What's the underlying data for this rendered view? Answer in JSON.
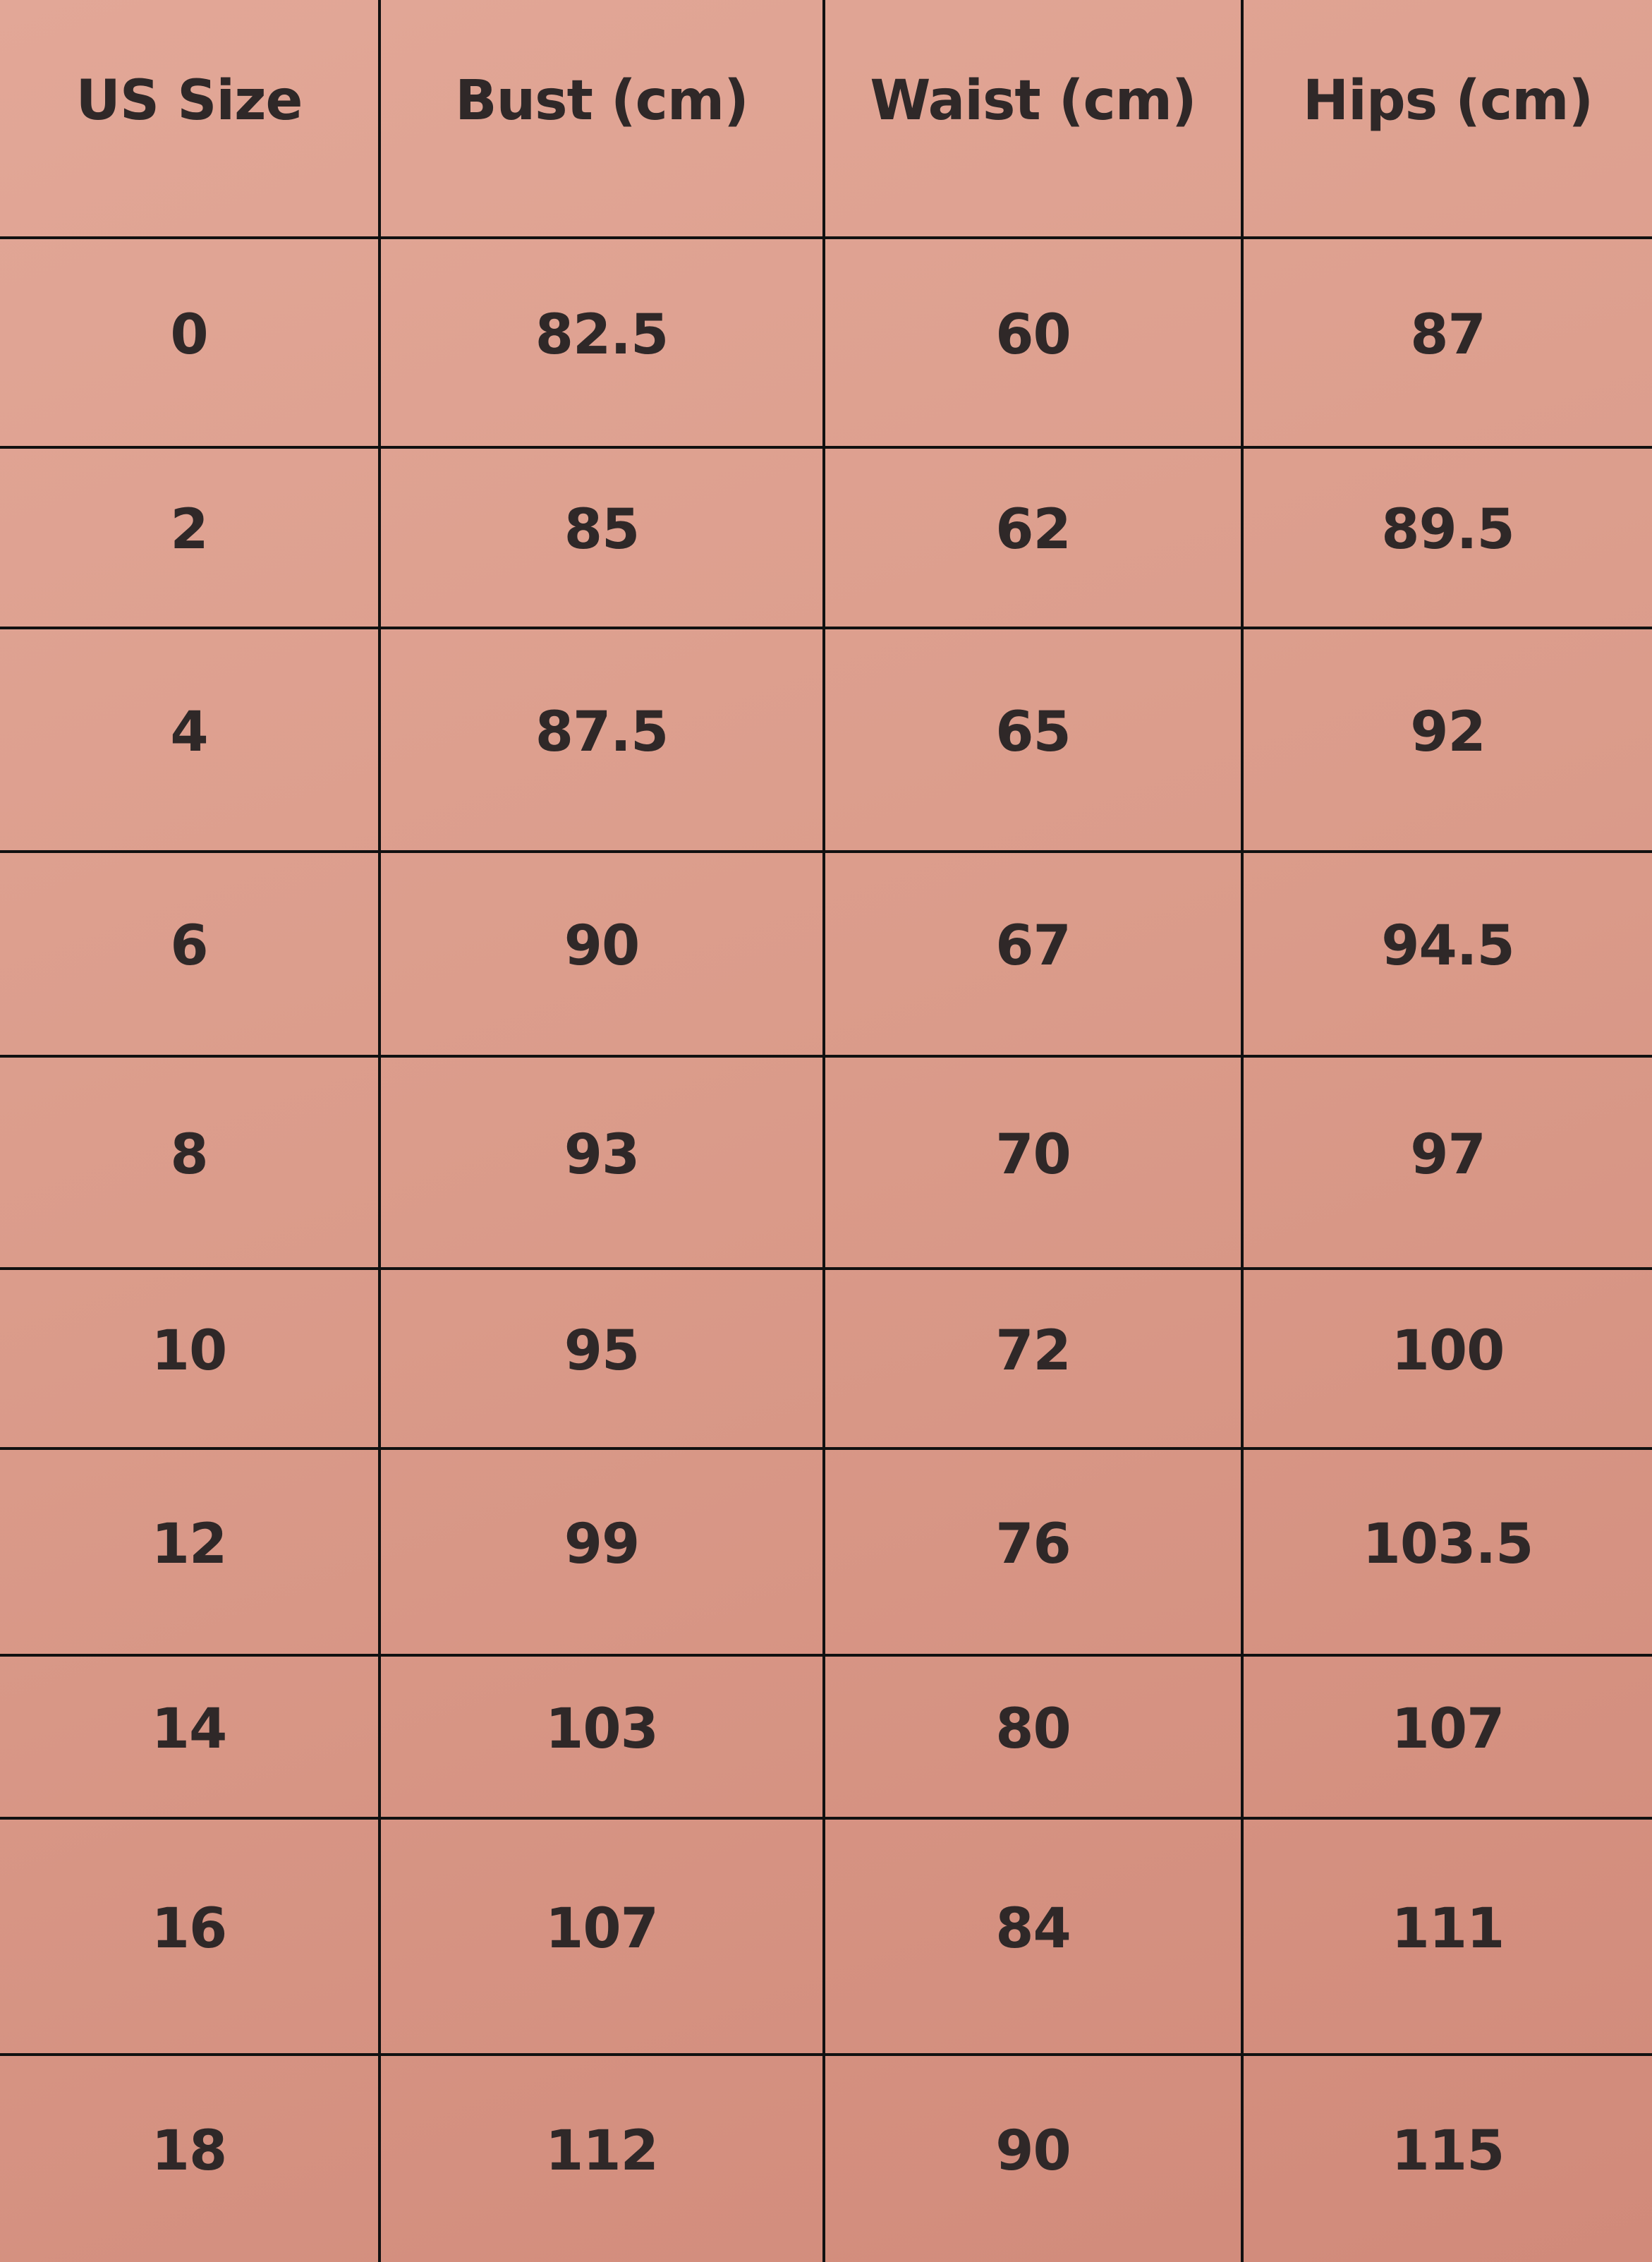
{
  "table": {
    "headers": [
      "US Size",
      "Bust (cm)",
      "Waist (cm)",
      "Hips (cm)"
    ],
    "rows": [
      [
        "0",
        "82.5",
        "60",
        "87"
      ],
      [
        "2",
        "85",
        "62",
        "89.5"
      ],
      [
        "4",
        "87.5",
        "65",
        "92"
      ],
      [
        "6",
        "90",
        "67",
        "94.5"
      ],
      [
        "8",
        "93",
        "70",
        "97"
      ],
      [
        "10",
        "95",
        "72",
        "100"
      ],
      [
        "12",
        "99",
        "76",
        "103.5"
      ],
      [
        "14",
        "103",
        "80",
        "107"
      ],
      [
        "16",
        "107",
        "84",
        "111"
      ],
      [
        "18",
        "112",
        "90",
        "115"
      ]
    ]
  },
  "colors": {
    "background_top": "#e2a797",
    "background_bottom": "#d18a7a",
    "text": "#2f2828",
    "grid": "#111111"
  }
}
